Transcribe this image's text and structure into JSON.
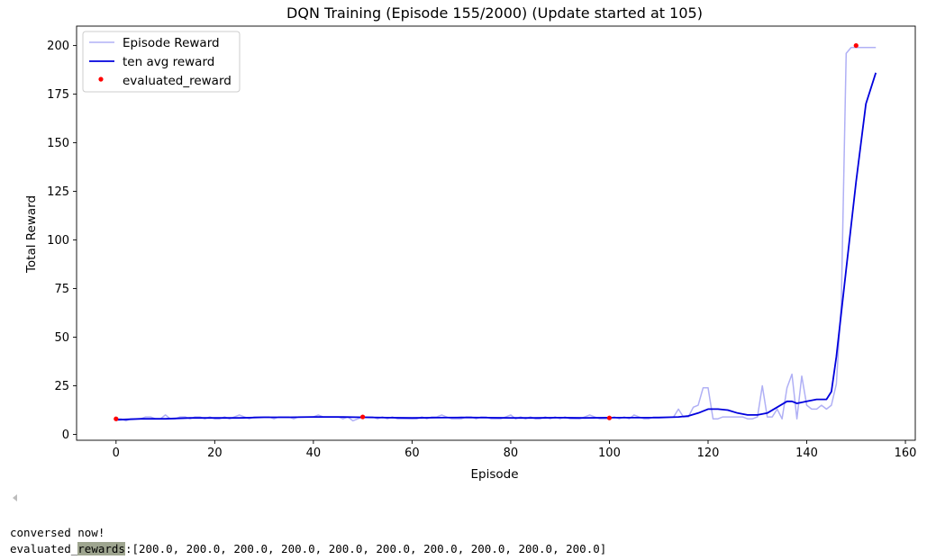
{
  "chart_data": {
    "type": "line",
    "title": "DQN Training (Episode 155/2000) (Update started at 105)",
    "xlabel": "Episode",
    "ylabel": "Total Reward",
    "xlim": [
      -8,
      162
    ],
    "ylim": [
      -3,
      210
    ],
    "xticks": [
      0,
      20,
      40,
      60,
      80,
      100,
      120,
      140,
      160
    ],
    "yticks": [
      0,
      25,
      50,
      75,
      100,
      125,
      150,
      175,
      200
    ],
    "grid": false,
    "legend": "top-left",
    "series": [
      {
        "name": "Episode Reward",
        "color": "#b0b0f5",
        "style": "line",
        "x": [
          0,
          1,
          2,
          3,
          4,
          5,
          6,
          7,
          8,
          9,
          10,
          11,
          12,
          13,
          14,
          15,
          16,
          17,
          18,
          19,
          20,
          21,
          22,
          23,
          24,
          25,
          26,
          27,
          28,
          29,
          30,
          31,
          32,
          33,
          34,
          35,
          36,
          37,
          38,
          39,
          40,
          41,
          42,
          43,
          44,
          45,
          46,
          47,
          48,
          49,
          50,
          51,
          52,
          53,
          54,
          55,
          56,
          57,
          58,
          59,
          60,
          61,
          62,
          63,
          64,
          65,
          66,
          67,
          68,
          69,
          70,
          71,
          72,
          73,
          74,
          75,
          76,
          77,
          78,
          79,
          80,
          81,
          82,
          83,
          84,
          85,
          86,
          87,
          88,
          89,
          90,
          91,
          92,
          93,
          94,
          95,
          96,
          97,
          98,
          99,
          100,
          101,
          102,
          103,
          104,
          105,
          106,
          107,
          108,
          109,
          110,
          111,
          112,
          113,
          114,
          115,
          116,
          117,
          118,
          119,
          120,
          121,
          122,
          123,
          124,
          125,
          126,
          127,
          128,
          129,
          130,
          131,
          132,
          133,
          134,
          135,
          136,
          137,
          138,
          139,
          140,
          141,
          142,
          143,
          144,
          145,
          146,
          147,
          148,
          149,
          150,
          151,
          152,
          153,
          154
        ],
        "values": [
          8,
          8,
          7,
          8,
          8,
          8,
          9,
          9,
          8,
          8,
          10,
          8,
          8,
          9,
          9,
          8,
          9,
          9,
          8,
          9,
          8,
          8,
          9,
          8,
          9,
          10,
          9,
          8,
          9,
          9,
          9,
          9,
          8,
          9,
          9,
          9,
          8,
          9,
          9,
          9,
          9,
          10,
          9,
          9,
          9,
          9,
          8,
          9,
          7,
          8,
          9,
          9,
          9,
          8,
          9,
          8,
          9,
          8,
          8,
          8,
          8,
          8,
          9,
          8,
          9,
          9,
          10,
          9,
          8,
          8,
          8,
          9,
          9,
          8,
          9,
          9,
          8,
          8,
          8,
          9,
          10,
          8,
          9,
          8,
          9,
          8,
          8,
          9,
          8,
          9,
          8,
          9,
          8,
          8,
          8,
          9,
          10,
          9,
          8,
          8,
          8,
          9,
          8,
          9,
          8,
          10,
          9,
          8,
          8,
          9,
          9,
          9,
          9,
          9,
          13,
          9,
          9,
          14,
          15,
          24,
          24,
          8,
          8,
          9,
          9,
          9,
          9,
          9,
          8,
          8,
          9,
          25,
          9,
          9,
          13,
          8,
          24,
          31,
          8,
          30,
          15,
          13,
          13,
          15,
          13,
          15,
          26,
          68,
          196,
          199,
          199,
          199,
          199,
          199,
          199
        ]
      },
      {
        "name": "ten avg reward",
        "color": "#0000dd",
        "style": "line",
        "x": [
          0,
          5,
          10,
          15,
          20,
          25,
          30,
          35,
          40,
          45,
          50,
          55,
          60,
          65,
          70,
          75,
          80,
          85,
          90,
          95,
          100,
          105,
          110,
          114,
          116,
          118,
          120,
          122,
          124,
          126,
          128,
          130,
          132,
          134,
          136,
          137,
          138,
          140,
          142,
          144,
          145,
          146,
          148,
          150,
          152,
          154
        ],
        "values": [
          7.5,
          8,
          8,
          8.5,
          8.5,
          8.5,
          8.8,
          8.8,
          9,
          9,
          8.8,
          8.6,
          8.5,
          8.6,
          8.7,
          8.6,
          8.5,
          8.5,
          8.6,
          8.5,
          8.6,
          8.6,
          8.6,
          9,
          9.5,
          11,
          13,
          13,
          12.5,
          11,
          10,
          10,
          11,
          14,
          17,
          17,
          16,
          17,
          18,
          18,
          22,
          40,
          85,
          130,
          170,
          186
        ]
      },
      {
        "name": "evaluated_reward",
        "color": "#ff0000",
        "style": "point",
        "x": [
          0,
          50,
          100,
          150
        ],
        "values": [
          8,
          9,
          8.5,
          200
        ]
      }
    ]
  },
  "output": {
    "line1": "conversed now!",
    "line2_prefix": "evaluated_",
    "line2_highlight": "rewards",
    "line2_suffix": ":[200.0, 200.0, 200.0, 200.0, 200.0, 200.0, 200.0, 200.0, 200.0, 200.0]"
  }
}
